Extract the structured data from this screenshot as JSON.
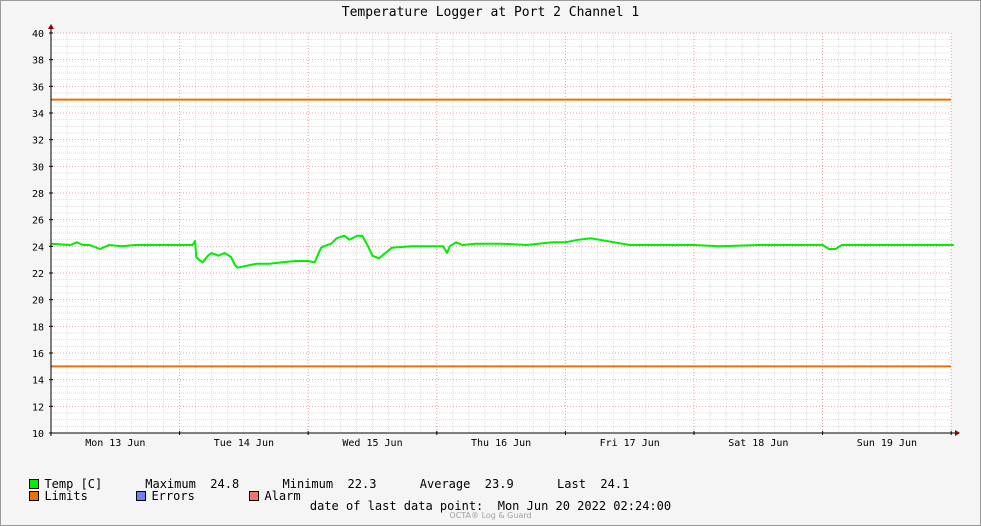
{
  "chart_data": {
    "type": "line",
    "title": "Temperature Logger at Port 2 Channel 1",
    "ylim": [
      10,
      40
    ],
    "yticks": [
      10,
      12,
      14,
      16,
      18,
      20,
      22,
      24,
      26,
      28,
      30,
      32,
      34,
      36,
      38,
      40
    ],
    "x_day_labels": [
      "Mon 13 Jun",
      "Tue 14 Jun",
      "Wed 15 Jun",
      "Thu 16 Jun",
      "Fri 17 Jun",
      "Sat 18 Jun",
      "Sun 19 Jun"
    ],
    "xlim_days": [
      0,
      7.02
    ],
    "grid": true,
    "series": [
      {
        "name": "Temp [C]",
        "color": "#00ee00",
        "x_days": [
          0,
          0.15,
          0.2,
          0.25,
          0.3,
          0.38,
          0.45,
          0.55,
          0.65,
          0.8,
          1.0,
          1.1,
          1.12,
          1.13,
          1.15,
          1.18,
          1.22,
          1.25,
          1.3,
          1.35,
          1.4,
          1.43,
          1.45,
          1.5,
          1.55,
          1.6,
          1.7,
          1.8,
          1.9,
          2.0,
          2.05,
          2.1,
          2.12,
          2.18,
          2.22,
          2.28,
          2.32,
          2.38,
          2.42,
          2.46,
          2.5,
          2.55,
          2.65,
          2.8,
          3.0,
          3.05,
          3.08,
          3.1,
          3.15,
          3.2,
          3.3,
          3.5,
          3.7,
          3.9,
          4.0,
          4.1,
          4.2,
          4.5,
          4.8,
          5.0,
          5.2,
          5.5,
          5.8,
          6.0,
          6.05,
          6.1,
          6.15,
          6.3,
          6.6,
          6.9,
          7.02
        ],
        "values": [
          24.2,
          24.1,
          24.3,
          24.1,
          24.1,
          23.8,
          24.1,
          24.0,
          24.1,
          24.1,
          24.1,
          24.1,
          24.4,
          23.2,
          23.0,
          22.8,
          23.3,
          23.5,
          23.3,
          23.5,
          23.2,
          22.6,
          22.4,
          22.5,
          22.6,
          22.7,
          22.7,
          22.8,
          22.9,
          22.9,
          22.8,
          23.9,
          24.0,
          24.2,
          24.6,
          24.8,
          24.5,
          24.8,
          24.8,
          24.1,
          23.3,
          23.1,
          23.9,
          24.0,
          24.0,
          24.0,
          23.5,
          24.0,
          24.3,
          24.1,
          24.2,
          24.2,
          24.1,
          24.3,
          24.3,
          24.5,
          24.6,
          24.1,
          24.1,
          24.1,
          24.0,
          24.1,
          24.1,
          24.1,
          23.8,
          23.8,
          24.1,
          24.1,
          24.1,
          24.1,
          24.1
        ]
      },
      {
        "name": "Limits",
        "color": "#ee7000",
        "values": [
          35,
          15
        ]
      }
    ]
  },
  "legend": {
    "temp_label": "Temp [C]",
    "stats_text": "Maximum  24.8      Minimum  22.3      Average  23.9      Last  24.1",
    "limits_label": "Limits",
    "errors_label": "Errors",
    "alarm_label": "Alarm",
    "colors": {
      "temp": "#00ee00",
      "limits": "#ee7000",
      "errors": "#7080ff",
      "alarm": "#ff7070"
    }
  },
  "footer": {
    "last_point": "date of last data point:  Mon Jun 20 2022 02:24:00",
    "watermark": "OCTA® Log & Guard"
  }
}
